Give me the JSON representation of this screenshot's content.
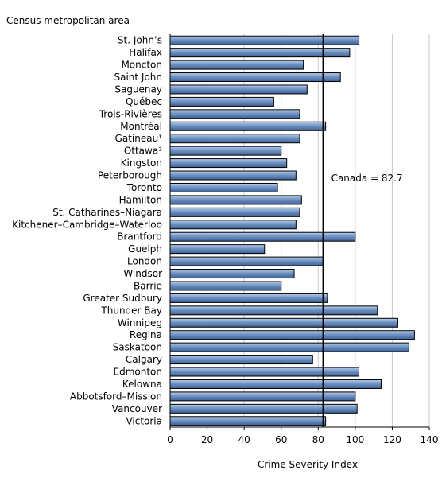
{
  "chart_data": {
    "type": "bar",
    "orientation": "horizontal",
    "ylabel": "Census metropolitan area",
    "xlabel": "Crime Severity Index",
    "xlim": [
      0,
      140
    ],
    "xticks": [
      0,
      20,
      40,
      60,
      80,
      100,
      120,
      140
    ],
    "grid": "vertical",
    "categories": [
      "St. John’s",
      "Halifax",
      "Moncton",
      "Saint John",
      "Saguenay",
      "Québec",
      "Trois-Rivières",
      "Montréal",
      "Gatineau¹",
      "Ottawa²",
      "Kingston",
      "Peterborough",
      "Toronto",
      "Hamilton",
      "St. Catharines–Niagara",
      "Kitchener–Cambridge–Waterloo",
      "Brantford",
      "Guelph",
      "London",
      "Windsor",
      "Barrie",
      "Greater Sudbury",
      "Thunder Bay",
      "Winnipeg",
      "Regina",
      "Saskatoon",
      "Calgary",
      "Edmonton",
      "Kelowna",
      "Abbotsford–Mission",
      "Vancouver",
      "Victoria"
    ],
    "values": [
      102,
      97,
      72,
      92,
      74,
      56,
      70,
      84,
      70,
      60,
      63,
      68,
      58,
      71,
      70,
      68,
      100,
      51,
      83,
      67,
      60,
      85,
      112,
      123,
      132,
      129,
      77,
      102,
      114,
      100,
      101,
      84
    ],
    "reference_line": {
      "value": 82.7,
      "label": "Canada = 82.7"
    },
    "bar_color": "#5b7fb5"
  }
}
